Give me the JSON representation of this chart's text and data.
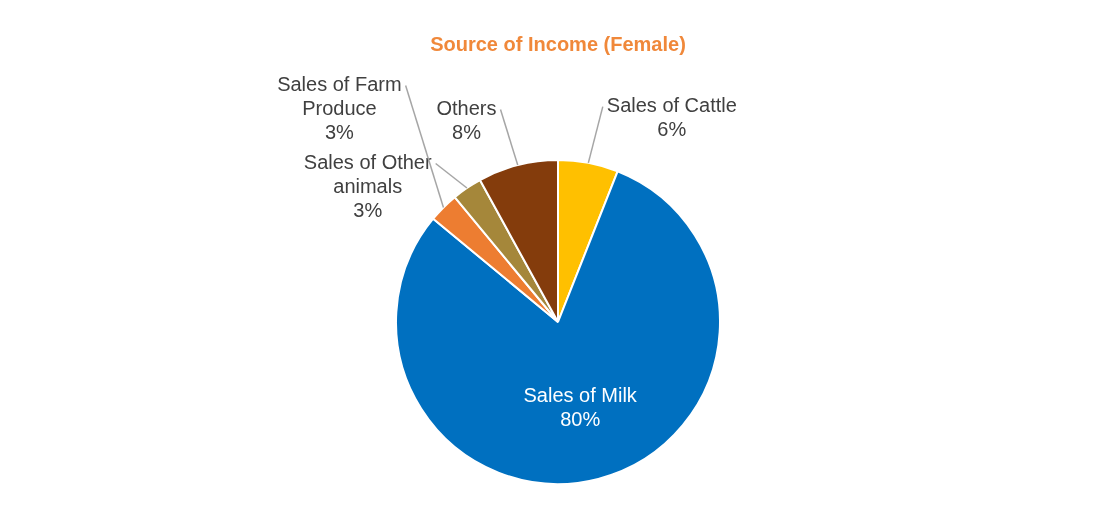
{
  "chart_data": {
    "type": "pie",
    "title": "Source of Income (Female)",
    "categories": [
      "Sales of Cattle",
      "Sales of Milk",
      "Sales of Farm Produce",
      "Sales of Other animals",
      "Others"
    ],
    "values": [
      6,
      80,
      3,
      3,
      8
    ],
    "colors": [
      "#ffc000",
      "#0070c0",
      "#ed7d31",
      "#a5873a",
      "#843c0c"
    ],
    "value_labels": [
      "6%",
      "80%",
      "3%",
      "3%",
      "8%"
    ],
    "legend": false
  }
}
